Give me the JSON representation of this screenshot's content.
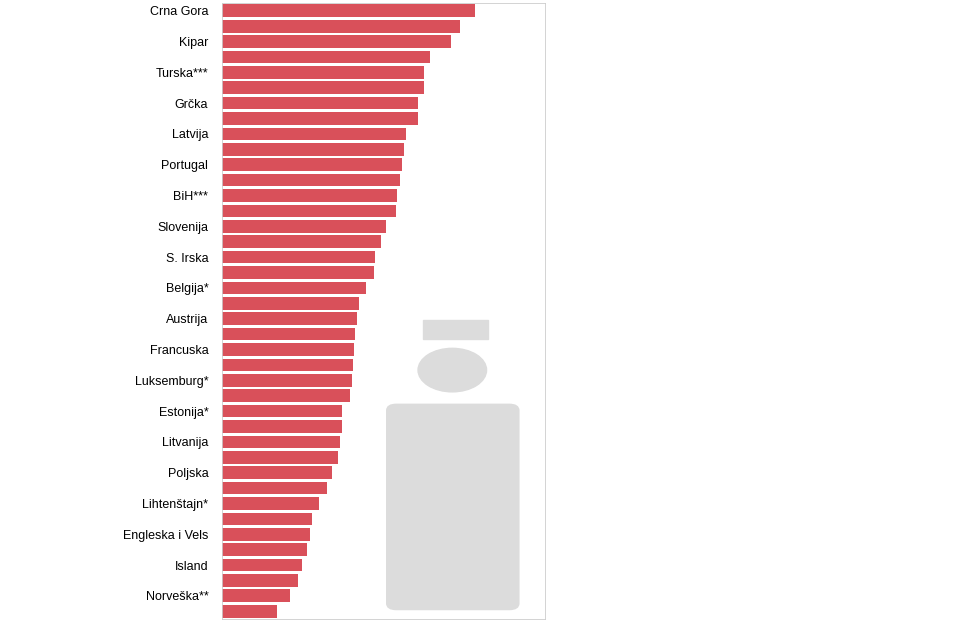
{
  "chart_data": {
    "type": "bar",
    "orientation": "horizontal",
    "categories": [
      "Crna Gora",
      null,
      "Kipar",
      null,
      "Turska***",
      null,
      "Grčka",
      null,
      "Latvija",
      null,
      "Portugal",
      null,
      "BiH***",
      null,
      "Slovenija",
      null,
      "S. Irska",
      null,
      "Belgija*",
      null,
      "Austrija",
      null,
      "Francuska",
      null,
      "Luksemburg*",
      null,
      "Estonija*",
      null,
      "Litvanija",
      null,
      "Poljska",
      null,
      "Lihtenštajn*",
      null,
      "Engleska i Vels",
      null,
      "Island",
      null,
      "Norveška**",
      null
    ],
    "values": [
      744,
      699,
      672,
      612,
      594,
      594,
      576,
      576,
      540,
      534,
      528,
      522,
      513,
      510,
      483,
      468,
      450,
      447,
      423,
      402,
      396,
      390,
      387,
      384,
      381,
      375,
      351,
      351,
      345,
      339,
      324,
      309,
      285,
      264,
      258,
      249,
      234,
      222,
      198,
      162
    ],
    "color": "#d9505a",
    "xlim": [
      0,
      950
    ],
    "tick_labels": "y",
    "grid": false
  }
}
